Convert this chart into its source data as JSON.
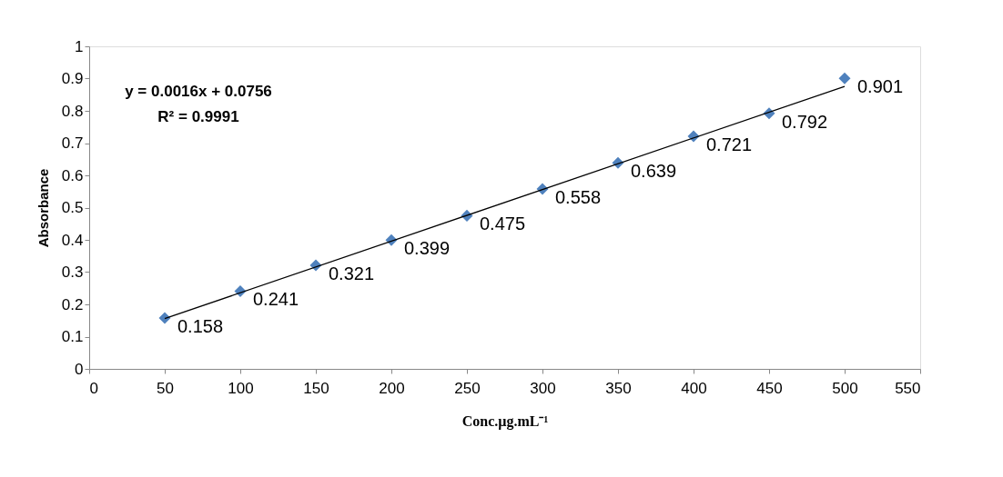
{
  "chart_data": {
    "type": "scatter",
    "xlabel": "Conc.µg.mL⁻¹",
    "ylabel": "Absorbance",
    "x": [
      50,
      100,
      150,
      200,
      250,
      300,
      350,
      400,
      450,
      500
    ],
    "series": [
      {
        "color": "#4f81bd",
        "marker": "diamond",
        "values": [
          0.158,
          0.241,
          0.321,
          0.399,
          0.475,
          0.558,
          0.639,
          0.721,
          0.792,
          0.901
        ],
        "value_labels": [
          "0.158",
          "0.241",
          "0.321",
          "0.399",
          "0.475",
          "0.558",
          "0.639",
          "0.721",
          "0.792",
          "0.901"
        ]
      },
      {
        "type": "line",
        "color": "#000000",
        "x": [
          50,
          500
        ],
        "values": [
          0.156,
          0.876
        ],
        "line_style": "solid"
      }
    ],
    "annotations": [
      "y = 0.0016x + 0.0756",
      "R² = 0.9991"
    ],
    "xlim": [
      0,
      550
    ],
    "xticks": [
      0,
      50,
      100,
      150,
      200,
      250,
      300,
      350,
      400,
      450,
      500,
      550
    ],
    "ylim": [
      0,
      1
    ],
    "yticks": [
      0,
      0.1,
      0.2,
      0.3,
      0.4,
      0.5,
      0.6,
      0.7,
      0.8,
      0.9,
      1
    ],
    "grid": false
  }
}
